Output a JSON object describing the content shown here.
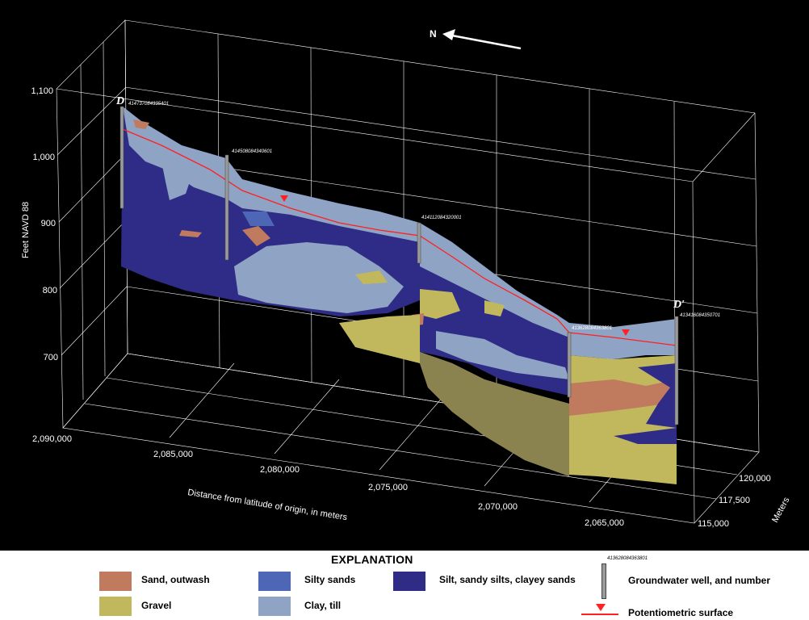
{
  "diagram": {
    "section_start": "D",
    "section_end": "D′",
    "north": "N",
    "vertical_axis": {
      "label": "Feet NAVD 88",
      "ticks": [
        "1,100",
        "1,000",
        "900",
        "800",
        "700"
      ]
    },
    "distance_axis": {
      "label": "Distance from latitude of origin, in meters",
      "ticks": [
        "2,090,000",
        "2,085,000",
        "2,080,000",
        "2,075,000",
        "2,070,000",
        "2,065,000"
      ]
    },
    "depth_axis": {
      "label": "Meters",
      "ticks": [
        "120,000",
        "117,500",
        "115,000"
      ]
    },
    "wells": [
      "414737084335401",
      "414508084340601",
      "414112084320001",
      "413628084363801",
      "413416084350701"
    ],
    "colors": {
      "sand_outwash": "#c07a5e",
      "gravel": "#c1b85e",
      "silty_sands": "#4d67b6",
      "clay_till": "#8fa3c4",
      "silt_clayey": "#2e2c86",
      "potentiometric": "#ff2020"
    }
  },
  "legend": {
    "title": "EXPLANATION",
    "items": [
      {
        "label": "Sand, outwash"
      },
      {
        "label": "Gravel"
      },
      {
        "label": "Silty sands"
      },
      {
        "label": "Clay, till"
      },
      {
        "label": "Silt, sandy silts, clayey sands"
      }
    ],
    "well_number": "413628084363801",
    "well_label": "Groundwater well, and number",
    "potentiometric_label": "Potentiometric surface"
  }
}
